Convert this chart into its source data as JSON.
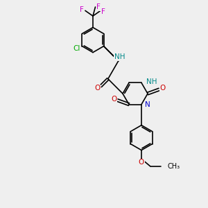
{
  "background_color": "#efefef",
  "atom_colors": {
    "C": "#000000",
    "N": "#0000cc",
    "O": "#cc0000",
    "F": "#cc00cc",
    "Cl": "#00aa00",
    "NH": "#008888"
  },
  "bond_color": "#000000",
  "bond_width": 1.2,
  "figsize": [
    3.0,
    3.0
  ],
  "dpi": 100
}
